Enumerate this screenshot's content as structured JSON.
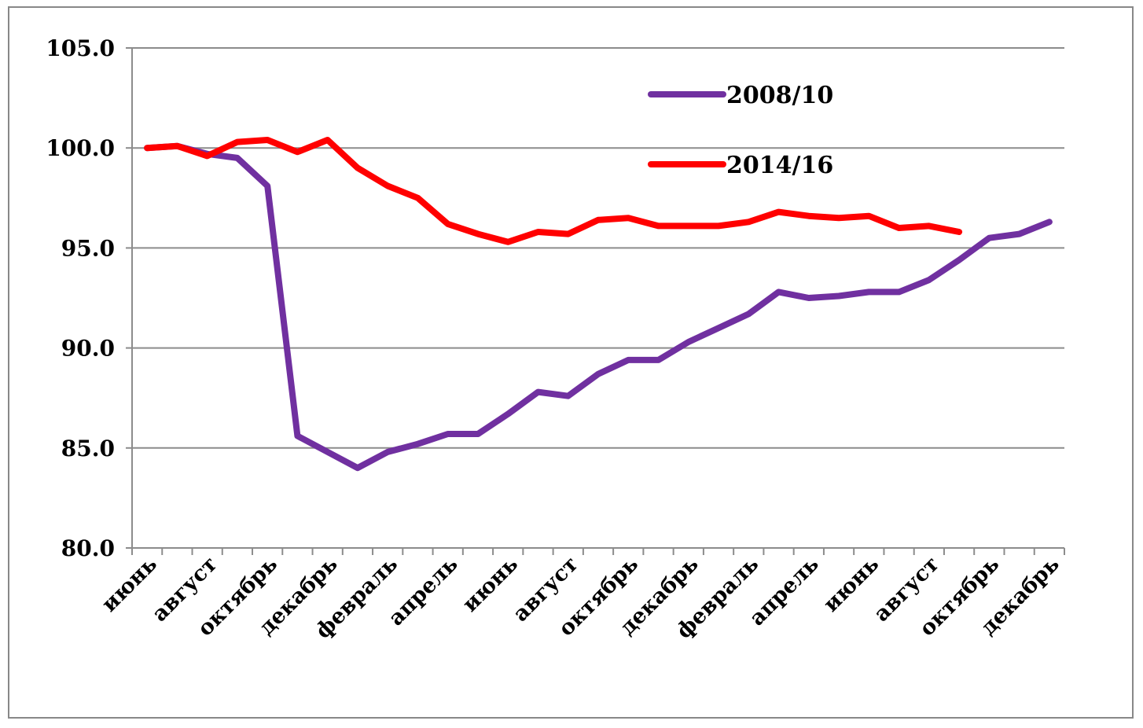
{
  "chart_data": {
    "type": "line",
    "title": "",
    "xlabel": "",
    "ylabel": "",
    "ylim": [
      80,
      105
    ],
    "yticks": [
      "80.0",
      "85.0",
      "90.0",
      "95.0",
      "100.0",
      "105.0"
    ],
    "ytick_values": [
      80,
      85,
      90,
      95,
      100,
      105
    ],
    "grid": true,
    "legend_position": "top-right",
    "x_labels": [
      "июнь",
      "август",
      "октябрь",
      "декабрь",
      "февраль",
      "апрель",
      "июнь",
      "август",
      "октябрь",
      "декабрь",
      "февраль",
      "апрель",
      "июнь",
      "август",
      "октябрь",
      "декабрь"
    ],
    "x_label_every": 2,
    "categories_count": 31,
    "series": [
      {
        "name": "2008/10",
        "color": "#7030a0",
        "values": [
          100.0,
          100.1,
          99.7,
          99.5,
          98.1,
          85.6,
          84.8,
          84.0,
          84.8,
          85.2,
          85.7,
          85.7,
          86.7,
          87.8,
          87.6,
          88.7,
          89.4,
          89.4,
          90.3,
          91.0,
          91.7,
          92.8,
          92.5,
          92.6,
          92.8,
          92.8,
          93.4,
          94.4,
          95.5,
          95.7,
          96.3
        ]
      },
      {
        "name": "2014/16",
        "color": "#ff0000",
        "values": [
          100.0,
          100.1,
          99.6,
          100.3,
          100.4,
          99.8,
          100.4,
          99.0,
          98.1,
          97.5,
          96.2,
          95.7,
          95.3,
          95.8,
          95.7,
          96.4,
          96.5,
          96.1,
          96.1,
          96.1,
          96.3,
          96.8,
          96.6,
          96.5,
          96.6,
          96.0,
          96.1,
          95.8
        ]
      }
    ]
  }
}
